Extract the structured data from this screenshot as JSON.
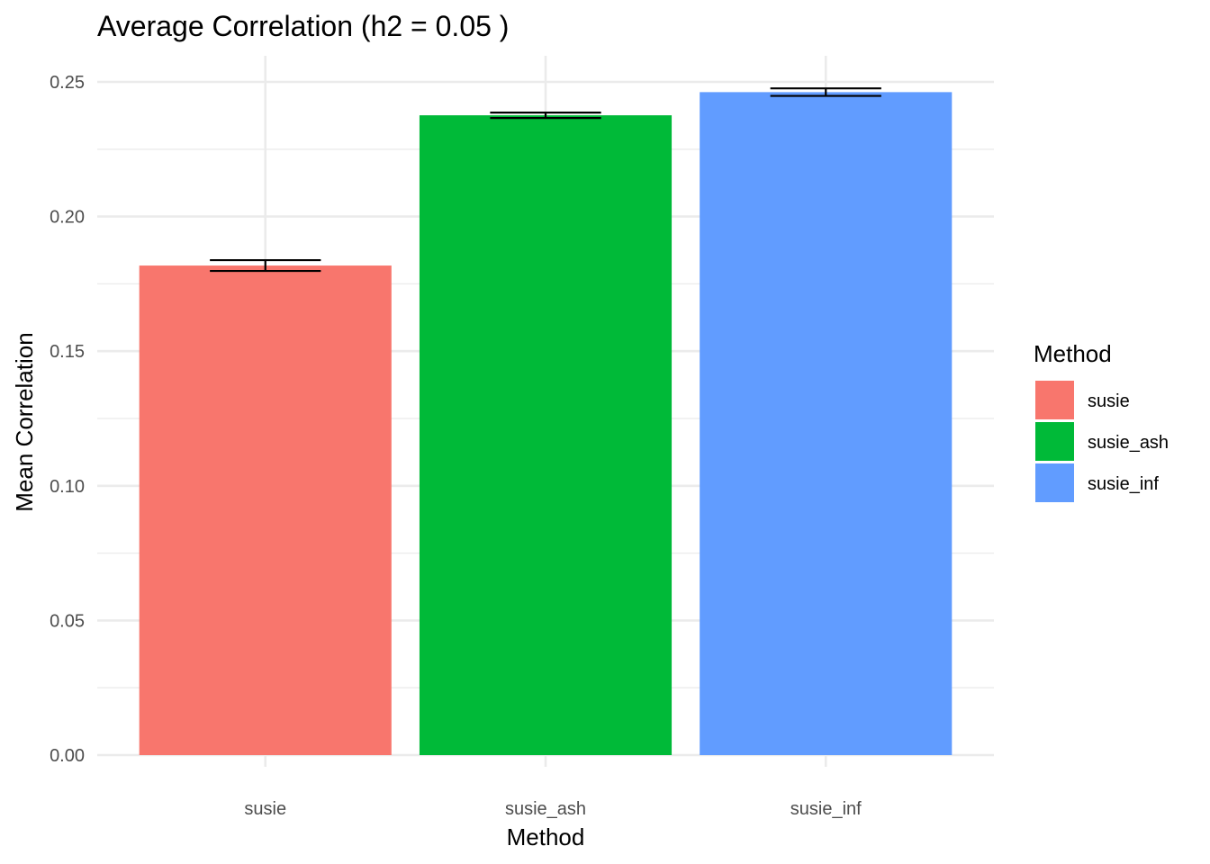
{
  "chart_data": {
    "type": "bar",
    "title": "Average Correlation (h2 = 0.05 )",
    "xlabel": "Method",
    "ylabel": "Mean Correlation",
    "categories": [
      "susie",
      "susie_ash",
      "susie_inf"
    ],
    "values": [
      0.1818,
      0.2376,
      0.2462
    ],
    "error_low": [
      0.1798,
      0.2366,
      0.2448
    ],
    "error_high": [
      0.1838,
      0.2386,
      0.2476
    ],
    "colors": [
      "#F8766D",
      "#00BA38",
      "#619CFF"
    ],
    "ylim": [
      0,
      0.26
    ],
    "y_ticks": [
      "0.00",
      "0.05",
      "0.10",
      "0.15",
      "0.20",
      "0.25"
    ],
    "y_tick_values": [
      0,
      0.05,
      0.1,
      0.15,
      0.2,
      0.25
    ],
    "y_minor_values": [
      0.025,
      0.075,
      0.125,
      0.175,
      0.225
    ],
    "grid": true,
    "legend": {
      "title": "Method",
      "position": "right",
      "items": [
        {
          "label": "susie",
          "color": "#F8766D"
        },
        {
          "label": "susie_ash",
          "color": "#00BA38"
        },
        {
          "label": "susie_inf",
          "color": "#619CFF"
        }
      ]
    }
  }
}
